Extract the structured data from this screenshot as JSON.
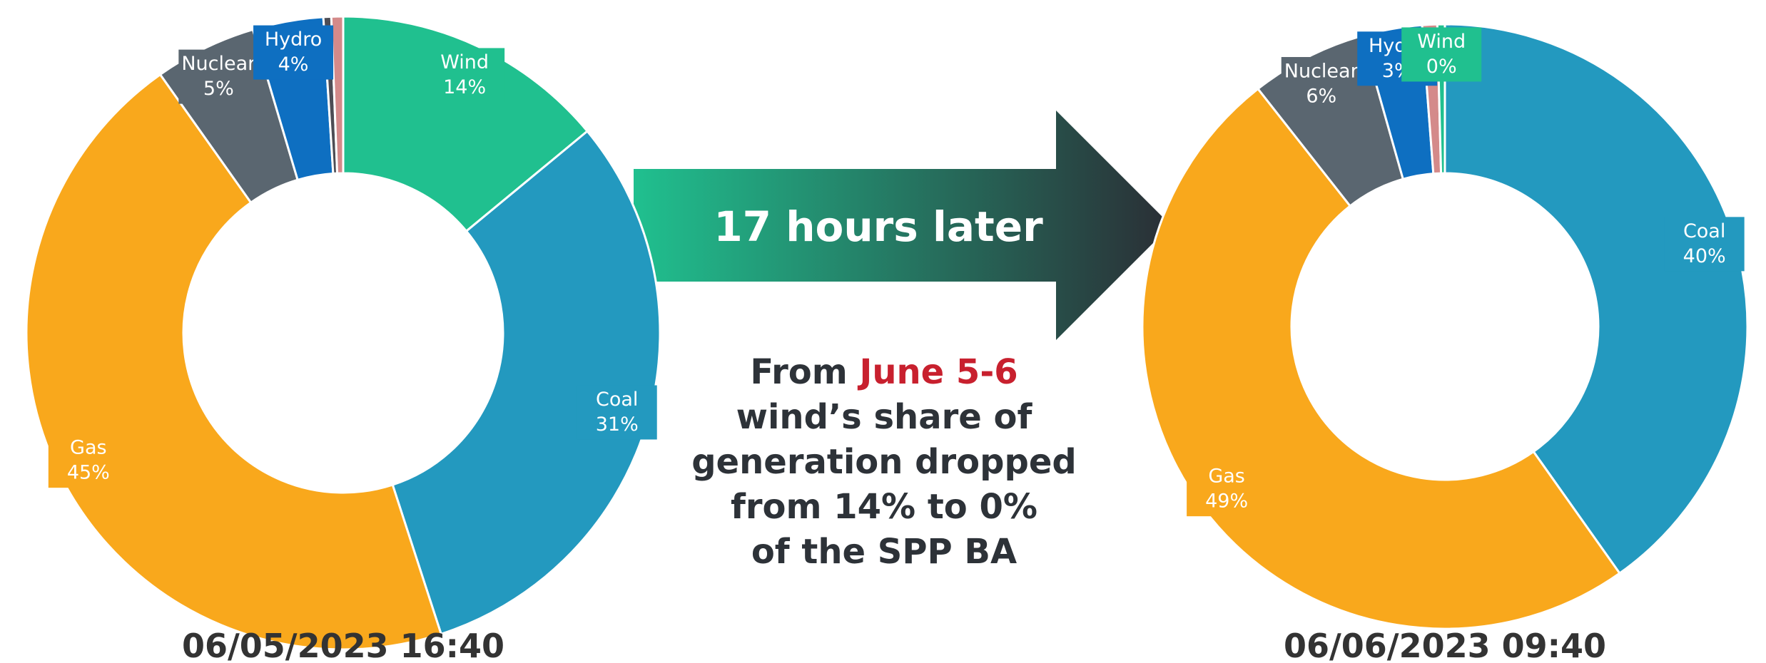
{
  "chart_data": [
    {
      "type": "donut",
      "title": "06/05/2023 16:40",
      "categories": [
        "Wind",
        "Coal",
        "Gas",
        "Nuclear",
        "Hydro",
        null,
        null
      ],
      "values": [
        14,
        31,
        45.2,
        5.2,
        3.6,
        0.4,
        0.6
      ],
      "value_labels": [
        "14%",
        "31%",
        "45%",
        "5%",
        "4%",
        null,
        null
      ],
      "colors": [
        "#20c08f",
        "#2399bf",
        "#f9a81c",
        "#5a6670",
        "#0e6fc1",
        "#4d4d55",
        "#d48a8a"
      ]
    },
    {
      "type": "donut",
      "title": "06/06/2023 09:40",
      "categories": [
        "Coal",
        "Gas",
        "Nuclear",
        "Hydro",
        null,
        "Wind"
      ],
      "values": [
        40.2,
        49.2,
        6.2,
        3.2,
        0.8,
        0.4
      ],
      "value_labels": [
        "40%",
        "49%",
        "6%",
        "3%",
        null,
        "0%"
      ],
      "colors": [
        "#2399bf",
        "#f9a81c",
        "#5a6670",
        "#0e6fc1",
        "#d48a8a",
        "#20c08f"
      ]
    }
  ],
  "arrow_text": "17 hours later",
  "caption": {
    "prefix": "From",
    "highlight": "June 5-6",
    "lines": [
      "wind’s share of",
      "generation dropped",
      "from 14% to 0%",
      "of the SPP BA"
    ]
  }
}
